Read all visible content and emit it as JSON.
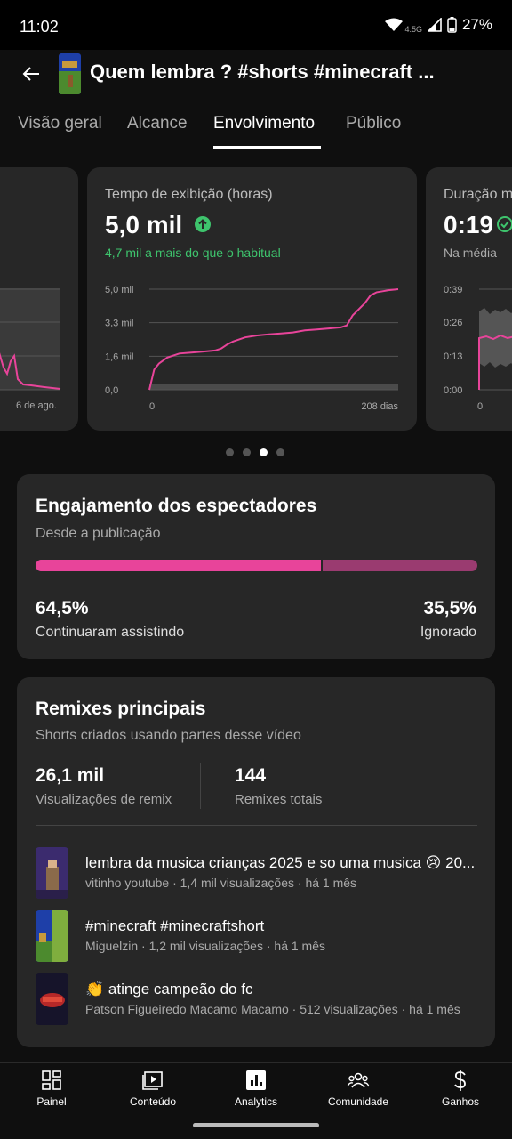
{
  "status": {
    "time": "11:02",
    "network": "4.5G",
    "battery": "27%"
  },
  "header": {
    "title": "Quem lembra ? #shorts #minecraft ..."
  },
  "tabs": [
    {
      "label": "Visão geral"
    },
    {
      "label": "Alcance"
    },
    {
      "label": "Envolvimento"
    },
    {
      "label": "Público"
    }
  ],
  "cards": {
    "left": {
      "x_end_label": "6 de ago."
    },
    "main": {
      "title": "Tempo de exibição (horas)",
      "value": "5,0 mil",
      "delta": "4,7 mil a mais do que o habitual",
      "y_ticks": [
        "5,0 mil",
        "3,3 mil",
        "1,6 mil",
        "0,0"
      ],
      "x_start": "0",
      "x_end": "208 dias"
    },
    "right": {
      "title": "Duração m",
      "value": "0:19",
      "sub": "Na média",
      "y_ticks": [
        "0:39",
        "0:26",
        "0:13",
        "0:00"
      ],
      "x_start": "0"
    }
  },
  "chart_data": {
    "type": "line",
    "title": "Tempo de exibição (horas)",
    "xlabel": "",
    "ylabel": "",
    "xlim": [
      0,
      208
    ],
    "ylim": [
      0,
      5000
    ],
    "series": [
      {
        "x": [
          0,
          4,
          8,
          15,
          25,
          35,
          45,
          55,
          60,
          65,
          70,
          80,
          90,
          100,
          110,
          120,
          130,
          140,
          150,
          160,
          165,
          170,
          175,
          180,
          185,
          190,
          195,
          200,
          208
        ],
        "y": [
          0,
          1000,
          1300,
          1600,
          1800,
          1850,
          1900,
          1950,
          2050,
          2250,
          2400,
          2600,
          2700,
          2750,
          2800,
          2850,
          2950,
          3000,
          3050,
          3100,
          3200,
          3700,
          4000,
          4300,
          4700,
          4850,
          4900,
          4950,
          5000
        ]
      }
    ],
    "typical_band": {
      "low": 0,
      "high": 300
    },
    "colors": {
      "line": "#e8449a",
      "band": "#555555"
    }
  },
  "pager": {
    "count": 4,
    "active": 2
  },
  "engagement": {
    "title": "Engajamento dos espectadores",
    "subtitle": "Desde a publicação",
    "continued_fraction": 0.645,
    "continued_value": "64,5%",
    "continued_label": "Continuaram assistindo",
    "ignored_value": "35,5%",
    "ignored_label": "Ignorado"
  },
  "remixes": {
    "title": "Remixes principais",
    "subtitle": "Shorts criados usando partes desse vídeo",
    "views_value": "26,1 mil",
    "views_label": "Visualizações de remix",
    "total_value": "144",
    "total_label": "Remixes totais",
    "items": [
      {
        "title": "lembra da musica crianças 2025 e so uma musica 😢 20...",
        "meta": "vitinho youtube · 1,4 mil visualizações · há 1 mês"
      },
      {
        "title": "#minecraft #minecraftshort",
        "meta": "Miguelzin · 1,2 mil visualizações · há 1 mês"
      },
      {
        "title": "👏 atinge campeão do fc",
        "meta": "Patson Figueiredo Macamo Macamo · 512 visualizações · há 1 mês"
      }
    ]
  },
  "bottom_nav": [
    {
      "label": "Painel",
      "icon": "dashboard-icon"
    },
    {
      "label": "Conteúdo",
      "icon": "content-icon"
    },
    {
      "label": "Analytics",
      "icon": "analytics-icon"
    },
    {
      "label": "Comunidade",
      "icon": "community-icon"
    },
    {
      "label": "Ganhos",
      "icon": "dollar-icon"
    }
  ],
  "colors": {
    "accent_pink": "#e8449a",
    "positive_green": "#3ec46d",
    "background": "#0f0f0f",
    "card": "#272727"
  }
}
